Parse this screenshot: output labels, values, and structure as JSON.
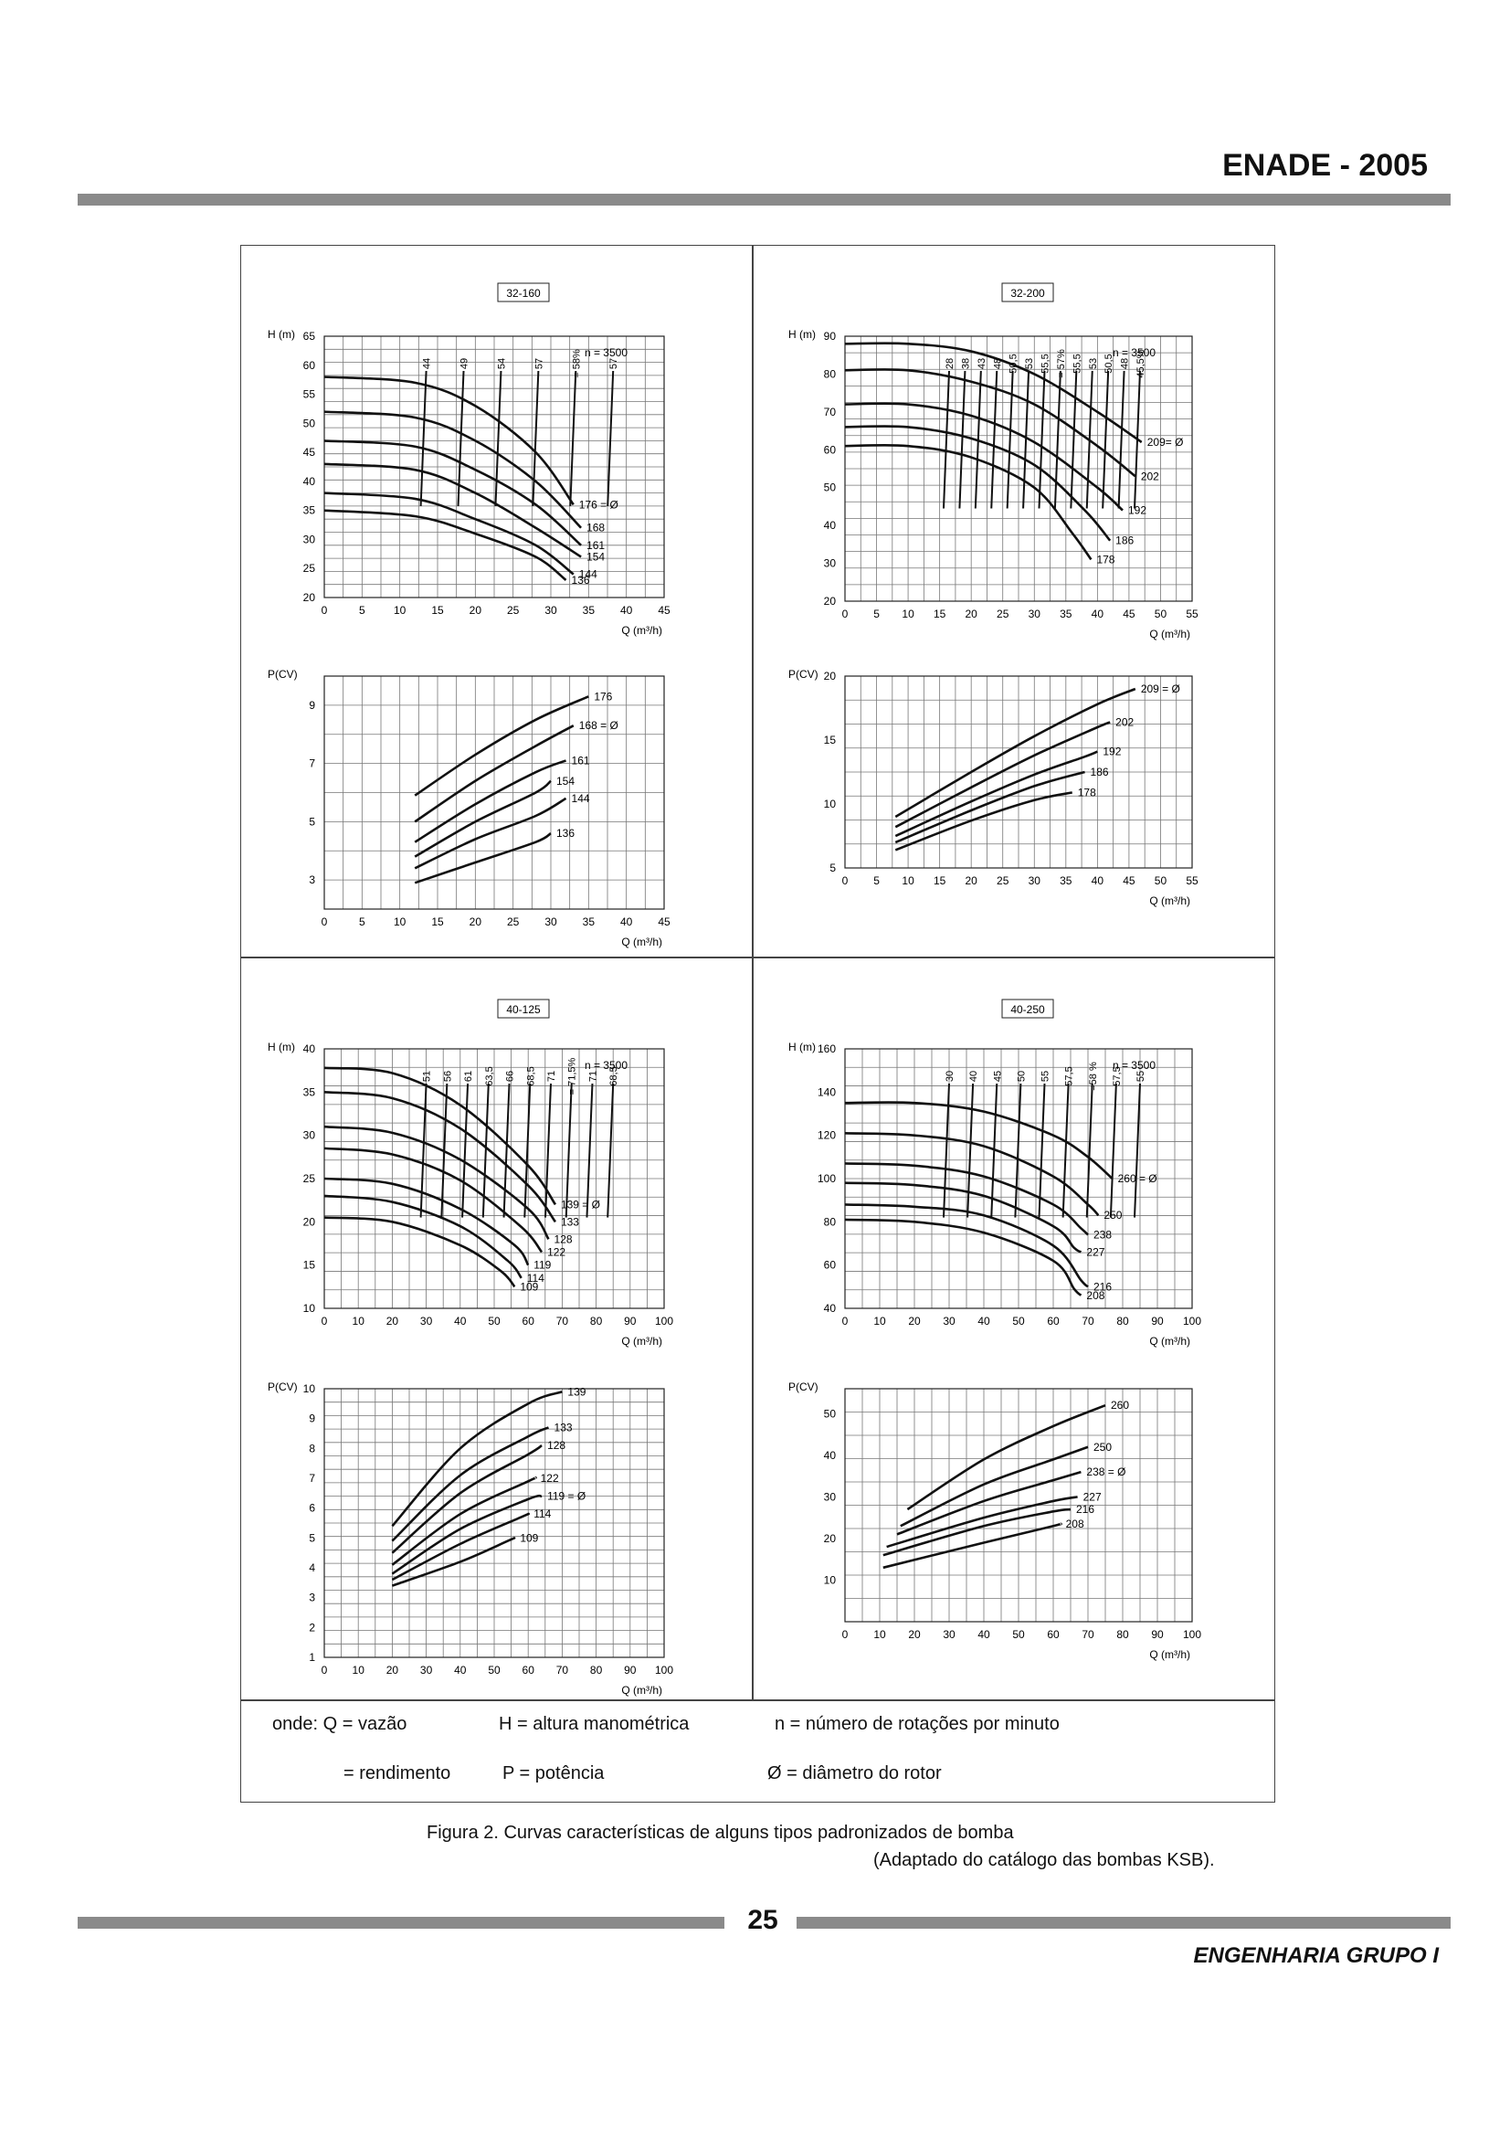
{
  "header": {
    "title": "ENADE - 2005"
  },
  "footer": {
    "page_number": "25",
    "text": "ENGENHARIA GRUPO I"
  },
  "legend": {
    "q_def": "onde: Q = vazão",
    "h_def": "H = altura manométrica",
    "n_def": "n = número de rotações por minuto",
    "eta_def": "= rendimento",
    "p_def": "P = potência",
    "d_def": "Ø = diâmetro do rotor"
  },
  "caption": {
    "line1": "Figura 2. Curvas características de alguns tipos padronizados de bomba",
    "line2": "(Adaptado do catálogo das bombas KSB)."
  },
  "chart_data": [
    {
      "type": "line",
      "title": "32-160",
      "annotation": "n = 3500",
      "xlabel": "Q (m³/h)",
      "ylabel": "H (m)",
      "xlim": [
        0,
        45
      ],
      "ylim": [
        20,
        65
      ],
      "xticks": [
        0,
        5,
        10,
        15,
        20,
        25,
        30,
        35,
        40,
        45
      ],
      "yticks": [
        20,
        25,
        30,
        35,
        40,
        45,
        50,
        55,
        60,
        65
      ],
      "series": [
        {
          "name": "176 = Ø",
          "x": [
            0,
            12,
            20,
            28,
            33
          ],
          "y": [
            58,
            57,
            53,
            45,
            36
          ]
        },
        {
          "name": "168",
          "x": [
            0,
            12,
            20,
            28,
            34
          ],
          "y": [
            52,
            51,
            47,
            40,
            32
          ]
        },
        {
          "name": "161",
          "x": [
            0,
            12,
            20,
            28,
            34
          ],
          "y": [
            47,
            46,
            42,
            36,
            29
          ]
        },
        {
          "name": "154",
          "x": [
            0,
            12,
            20,
            28,
            34
          ],
          "y": [
            43,
            42,
            38,
            32,
            27
          ]
        },
        {
          "name": "144",
          "x": [
            0,
            12,
            20,
            28,
            33
          ],
          "y": [
            38,
            37,
            33.5,
            29,
            24
          ]
        },
        {
          "name": "136",
          "x": [
            0,
            12,
            20,
            28,
            32
          ],
          "y": [
            35,
            34,
            31,
            27,
            23
          ]
        }
      ],
      "efficiency_labels": [
        "44",
        "49",
        "54",
        "57",
        "= 58%",
        "57"
      ]
    },
    {
      "type": "line",
      "title": "32-200",
      "annotation": "n = 3500",
      "xlabel": "Q (m³/h)",
      "ylabel": "H (m)",
      "xlim": [
        0,
        55
      ],
      "ylim": [
        20,
        90
      ],
      "xticks": [
        0,
        5,
        10,
        15,
        20,
        25,
        30,
        35,
        40,
        45,
        50,
        55
      ],
      "yticks": [
        20,
        30,
        40,
        50,
        60,
        70,
        80,
        90
      ],
      "series": [
        {
          "name": "209= Ø",
          "x": [
            0,
            10,
            20,
            30,
            40,
            47
          ],
          "y": [
            88,
            88,
            86,
            80,
            70,
            62
          ]
        },
        {
          "name": "202",
          "x": [
            0,
            10,
            20,
            30,
            40,
            46
          ],
          "y": [
            81,
            81,
            78,
            72,
            61,
            53
          ]
        },
        {
          "name": "192",
          "x": [
            0,
            10,
            20,
            30,
            40,
            44
          ],
          "y": [
            72,
            72,
            69,
            62,
            50,
            44
          ]
        },
        {
          "name": "186",
          "x": [
            0,
            10,
            20,
            30,
            38,
            42
          ],
          "y": [
            66,
            66,
            63,
            56,
            44,
            36
          ]
        },
        {
          "name": "178",
          "x": [
            0,
            10,
            20,
            30,
            36,
            39
          ],
          "y": [
            61,
            61,
            58,
            50,
            38,
            31
          ]
        }
      ],
      "efficiency_labels": [
        "28",
        "38",
        "43",
        "48",
        "50,5",
        "53",
        "55,5",
        "= 57%",
        "55,5",
        "53",
        "50,5",
        "48",
        "45,5%"
      ]
    },
    {
      "type": "line",
      "title": "32-160",
      "xlabel": "Q (m³/h)",
      "ylabel": "P(CV)",
      "xlim": [
        0,
        45
      ],
      "ylim": [
        2,
        10
      ],
      "xticks": [
        0,
        5,
        10,
        15,
        20,
        25,
        30,
        35,
        40,
        45
      ],
      "yticks": [
        3,
        5,
        7,
        9
      ],
      "series": [
        {
          "name": "176",
          "x": [
            12,
            20,
            28,
            35
          ],
          "y": [
            5.9,
            7.3,
            8.5,
            9.3
          ]
        },
        {
          "name": "168 = Ø",
          "x": [
            12,
            20,
            28,
            33
          ],
          "y": [
            5.0,
            6.4,
            7.6,
            8.3
          ]
        },
        {
          "name": "161",
          "x": [
            12,
            20,
            28,
            32
          ],
          "y": [
            4.3,
            5.6,
            6.7,
            7.1
          ]
        },
        {
          "name": "154",
          "x": [
            12,
            20,
            28,
            30
          ],
          "y": [
            3.8,
            5.0,
            6.0,
            6.4
          ]
        },
        {
          "name": "144",
          "x": [
            12,
            20,
            28,
            32
          ],
          "y": [
            3.4,
            4.4,
            5.2,
            5.8
          ]
        },
        {
          "name": "136",
          "x": [
            12,
            20,
            28,
            30
          ],
          "y": [
            2.9,
            3.6,
            4.3,
            4.6
          ]
        }
      ]
    },
    {
      "type": "line",
      "title": "32-200",
      "xlabel": "Q (m³/h)",
      "ylabel": "P(CV)",
      "xlim": [
        0,
        55
      ],
      "ylim": [
        5,
        20
      ],
      "xticks": [
        0,
        5,
        10,
        15,
        20,
        25,
        30,
        35,
        40,
        45,
        50,
        55
      ],
      "yticks": [
        5,
        10,
        15,
        20
      ],
      "series": [
        {
          "name": "209 = Ø",
          "x": [
            8,
            20,
            30,
            40,
            46
          ],
          "y": [
            9.0,
            12.5,
            15.3,
            17.8,
            19.0
          ]
        },
        {
          "name": "202",
          "x": [
            8,
            20,
            30,
            40,
            42
          ],
          "y": [
            8.2,
            11.3,
            13.8,
            16.0,
            16.4
          ]
        },
        {
          "name": "192",
          "x": [
            8,
            20,
            30,
            38,
            40
          ],
          "y": [
            7.5,
            10.2,
            12.3,
            13.7,
            14.1
          ]
        },
        {
          "name": "186",
          "x": [
            8,
            20,
            30,
            38
          ],
          "y": [
            7.0,
            9.5,
            11.4,
            12.5
          ]
        },
        {
          "name": "178",
          "x": [
            8,
            20,
            30,
            36
          ],
          "y": [
            6.4,
            8.7,
            10.3,
            10.9
          ]
        }
      ]
    },
    {
      "type": "line",
      "title": "40-125",
      "annotation": "n = 3500",
      "xlabel": "Q (m³/h)",
      "ylabel": "H (m)",
      "xlim": [
        0,
        100
      ],
      "ylim": [
        10,
        40
      ],
      "xticks": [
        0,
        10,
        20,
        30,
        40,
        50,
        60,
        70,
        80,
        90,
        100
      ],
      "yticks": [
        10,
        15,
        20,
        25,
        30,
        35,
        40
      ],
      "series": [
        {
          "name": "139 = Ø",
          "x": [
            0,
            20,
            40,
            60,
            68
          ],
          "y": [
            37.8,
            37.2,
            33.5,
            26.5,
            22
          ]
        },
        {
          "name": "133",
          "x": [
            0,
            20,
            40,
            60,
            68
          ],
          "y": [
            35,
            34.3,
            30.8,
            24.2,
            20
          ]
        },
        {
          "name": "128",
          "x": [
            0,
            20,
            40,
            60,
            66
          ],
          "y": [
            31,
            30.3,
            27.2,
            21.5,
            18
          ]
        },
        {
          "name": "122",
          "x": [
            0,
            20,
            40,
            58,
            64
          ],
          "y": [
            28.5,
            27.8,
            24.8,
            19.4,
            16.5
          ]
        },
        {
          "name": "119",
          "x": [
            0,
            20,
            40,
            56,
            60
          ],
          "y": [
            25,
            24.4,
            21.5,
            17.3,
            15
          ]
        },
        {
          "name": "114",
          "x": [
            0,
            20,
            40,
            54,
            58
          ],
          "y": [
            23,
            22.3,
            19.5,
            15.5,
            13.5
          ]
        },
        {
          "name": "109",
          "x": [
            0,
            20,
            40,
            52,
            56
          ],
          "y": [
            20.5,
            20,
            17.3,
            14.3,
            12.5
          ]
        }
      ],
      "efficiency_labels": [
        "51",
        "56",
        "61",
        "63,5",
        "66",
        "68,5",
        "71",
        "= 71,5%",
        "71",
        "68,5"
      ]
    },
    {
      "type": "line",
      "title": "40-250",
      "annotation": "n = 3500",
      "xlabel": "Q (m³/h)",
      "ylabel": "H (m)",
      "xlim": [
        0,
        100
      ],
      "ylim": [
        40,
        160
      ],
      "xticks": [
        0,
        10,
        20,
        30,
        40,
        50,
        60,
        70,
        80,
        90,
        100
      ],
      "yticks": [
        40,
        60,
        80,
        100,
        120,
        140,
        160
      ],
      "series": [
        {
          "name": "260 = Ø",
          "x": [
            0,
            20,
            40,
            60,
            70,
            77
          ],
          "y": [
            135,
            135,
            131,
            120,
            110,
            100
          ]
        },
        {
          "name": "250",
          "x": [
            0,
            20,
            40,
            60,
            70,
            73
          ],
          "y": [
            121,
            120,
            115,
            101,
            88,
            83
          ]
        },
        {
          "name": "238",
          "x": [
            0,
            20,
            40,
            60,
            68,
            70
          ],
          "y": [
            107,
            106,
            101,
            88,
            77,
            74
          ]
        },
        {
          "name": "227",
          "x": [
            0,
            20,
            40,
            60,
            66,
            68
          ],
          "y": [
            98,
            97,
            92,
            78,
            68,
            66
          ]
        },
        {
          "name": "216",
          "x": [
            0,
            20,
            40,
            60,
            68,
            70
          ],
          "y": [
            88,
            87,
            83,
            69,
            53,
            50
          ]
        },
        {
          "name": "208",
          "x": [
            0,
            20,
            40,
            60,
            66,
            68
          ],
          "y": [
            81,
            80,
            75,
            62,
            49,
            46
          ]
        }
      ],
      "efficiency_labels": [
        "30",
        "40",
        "45",
        "50",
        "55",
        "57,5",
        "=58 %",
        "57,5",
        "55"
      ]
    },
    {
      "type": "line",
      "title": "40-125",
      "xlabel": "Q (m³/h)",
      "ylabel": "P(CV)",
      "xlim": [
        0,
        100
      ],
      "ylim": [
        1,
        10
      ],
      "xticks": [
        0,
        10,
        20,
        30,
        40,
        50,
        60,
        70,
        80,
        90,
        100
      ],
      "yticks": [
        1,
        2,
        3,
        4,
        5,
        6,
        7,
        8,
        9,
        10
      ],
      "series": [
        {
          "name": "139",
          "x": [
            20,
            40,
            60,
            70
          ],
          "y": [
            5.4,
            8.0,
            9.5,
            9.9
          ]
        },
        {
          "name": "133",
          "x": [
            20,
            40,
            60,
            66
          ],
          "y": [
            4.9,
            7.1,
            8.4,
            8.7
          ]
        },
        {
          "name": "128",
          "x": [
            20,
            40,
            60,
            64
          ],
          "y": [
            4.5,
            6.5,
            7.8,
            8.1
          ]
        },
        {
          "name": "122",
          "x": [
            20,
            40,
            60,
            62
          ],
          "y": [
            4.1,
            5.8,
            6.9,
            7.0
          ]
        },
        {
          "name": "119 = Ø",
          "x": [
            20,
            40,
            60,
            64
          ],
          "y": [
            3.8,
            5.3,
            6.3,
            6.4
          ]
        },
        {
          "name": "114",
          "x": [
            20,
            40,
            58,
            60
          ],
          "y": [
            3.6,
            4.8,
            5.7,
            5.8
          ]
        },
        {
          "name": "109",
          "x": [
            20,
            40,
            54,
            56
          ],
          "y": [
            3.4,
            4.2,
            4.9,
            5.0
          ]
        }
      ]
    },
    {
      "type": "line",
      "title": "40-250",
      "xlabel": "Q (m³/h)",
      "ylabel": "P(CV)",
      "xlim": [
        0,
        100
      ],
      "ylim": [
        0,
        56
      ],
      "xticks": [
        0,
        10,
        20,
        30,
        40,
        50,
        60,
        70,
        80,
        90,
        100
      ],
      "yticks": [
        10,
        20,
        30,
        40,
        50
      ],
      "series": [
        {
          "name": "260",
          "x": [
            18,
            40,
            60,
            75
          ],
          "y": [
            27,
            39,
            47,
            52
          ]
        },
        {
          "name": "250",
          "x": [
            16,
            40,
            60,
            70
          ],
          "y": [
            23,
            33,
            39,
            42
          ]
        },
        {
          "name": "238 = Ø",
          "x": [
            15,
            40,
            60,
            68
          ],
          "y": [
            21,
            29,
            34,
            36
          ]
        },
        {
          "name": "227",
          "x": [
            12,
            40,
            60,
            67
          ],
          "y": [
            18,
            25,
            29,
            30
          ]
        },
        {
          "name": "216",
          "x": [
            11,
            40,
            60,
            65
          ],
          "y": [
            16,
            23,
            26.5,
            27
          ]
        },
        {
          "name": "208",
          "x": [
            11,
            40,
            60,
            62
          ],
          "y": [
            13,
            19,
            23,
            23.5
          ]
        }
      ]
    }
  ]
}
